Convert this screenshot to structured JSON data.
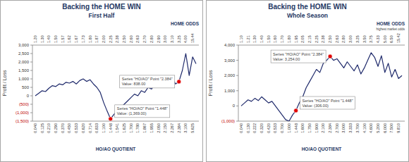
{
  "chart_data": [
    {
      "type": "line",
      "title": "Backing the HOME WIN",
      "subtitle": "First Half",
      "ylabel": "Profit / Loss",
      "xlabel": "HO/AO QUOTIENT",
      "x2label": "HOME ODDS",
      "color": "#1f2a6b",
      "grid": false,
      "categories": [
        "0.040",
        null,
        "0.125",
        null,
        "0.210",
        null,
        "0.290",
        null,
        "0.370",
        null,
        "0.450",
        null,
        "0.533",
        null,
        "0.620",
        null,
        "0.714",
        null,
        "0.833",
        null,
        "1.100",
        null,
        "1.448",
        null,
        "1.541",
        null,
        "1.625",
        null,
        "1.700",
        null,
        "1.780",
        null,
        "1.867",
        null,
        "1.955",
        null,
        "2.050",
        null,
        "2.150",
        null,
        "2.267",
        null,
        "2.384",
        null,
        "3.100",
        null,
        "5.625",
        null
      ],
      "x2_categories": [
        "1.20",
        null,
        "1.30",
        null,
        "1.40",
        null,
        "1.50",
        null,
        "1.57",
        null,
        "1.62",
        null,
        "1.67",
        null,
        "1.73",
        null,
        "1.80",
        null,
        "1.87",
        null,
        "2.00",
        null,
        "2.25",
        null,
        "2.38",
        null,
        "2.50",
        null,
        "2.60",
        null,
        "2.63",
        null,
        "2.70",
        null,
        "2.80",
        null,
        "2.90",
        null,
        "3.00",
        null,
        "3.10",
        null,
        "3.25",
        null,
        "4.00",
        null,
        "15.44",
        null
      ],
      "values": [
        0,
        150,
        300,
        250,
        450,
        600,
        550,
        700,
        650,
        800,
        750,
        850,
        700,
        900,
        1000,
        850,
        950,
        700,
        500,
        200,
        -400,
        -900,
        -1369,
        -1100,
        -900,
        -700,
        -500,
        -300,
        -100,
        100,
        0,
        300,
        200,
        500,
        400,
        700,
        600,
        800,
        1000,
        900,
        1100,
        700,
        838,
        1500,
        2500,
        1200,
        2300,
        1900
      ],
      "ylim": [
        -1500,
        3000
      ],
      "yticks": [
        {
          "value": -1500,
          "label": "(1,500)"
        },
        {
          "value": -1000,
          "label": "(1,000)"
        },
        {
          "value": -500,
          "label": "(500)"
        },
        0,
        500,
        {
          "value": 1000,
          "label": "1,000"
        },
        {
          "value": 1500,
          "label": "1,500"
        },
        {
          "value": 2000,
          "label": "2,000"
        },
        {
          "value": 2500,
          "label": "2,500"
        },
        {
          "value": 3000,
          "label": "3,000"
        }
      ],
      "annotations": [
        {
          "index": 42,
          "color": "#e00000",
          "text": [
            "Series \"HO/AO\" Point \"2.384\"",
            "Value: 838.00"
          ]
        },
        {
          "index": 22,
          "color": "#e00000",
          "text": [
            "Series \"HO/AO\" Point \"1.448\"",
            "Value: (1,369.00)"
          ]
        }
      ]
    },
    {
      "type": "line",
      "title": "Backing the HOME WIN",
      "subtitle": "Whole Season",
      "ylabel": "Profit / Loss",
      "xlabel": "HO/AO QUOTIENT",
      "x2label": "HOME ODDS",
      "x2note": "highest market odds",
      "color": "#1f2a6b",
      "grid": false,
      "categories": [
        "0.040",
        null,
        "0.130",
        null,
        "0.222",
        null,
        "0.320",
        null,
        "0.420",
        null,
        "0.533",
        null,
        "0.700",
        null,
        "1.000",
        null,
        "1.448",
        null,
        "1.600",
        null,
        "1.750",
        null,
        "1.900",
        null,
        "2.100",
        null,
        "2.384",
        null,
        "2.700",
        null,
        "3.000",
        null,
        "3.333",
        null,
        "3.700",
        null,
        "4.100",
        null,
        "4.600",
        null,
        "5.200",
        null,
        "6.000",
        null,
        "7.500",
        null,
        "9.810",
        null
      ],
      "x2_categories": [
        "1.10",
        null,
        "1.21",
        null,
        "1.30",
        null,
        "1.40",
        null,
        "1.50",
        null,
        "1.60",
        null,
        "1.70",
        null,
        "1.80",
        null,
        "1.95",
        null,
        "2.05",
        null,
        "2.15",
        null,
        "2.25",
        null,
        "2.38",
        null,
        "2.50",
        null,
        "2.63",
        null,
        "2.80",
        null,
        "3.00",
        null,
        "3.25",
        null,
        "3.50",
        null,
        "3.75",
        null,
        "4.33",
        null,
        "5.00",
        null,
        "6.50",
        null,
        "15.42",
        null
      ],
      "values": [
        0,
        200,
        400,
        300,
        500,
        350,
        600,
        400,
        200,
        300,
        0,
        -300,
        -600,
        -900,
        -1000,
        -600,
        -306,
        200,
        600,
        1200,
        1600,
        2000,
        2400,
        2200,
        2800,
        3000,
        3254,
        3000,
        3100,
        2800,
        2500,
        2900,
        2600,
        2300,
        2700,
        2100,
        2500,
        3000,
        3500,
        3200,
        2600,
        3300,
        2200,
        2800,
        1900,
        2400,
        1800,
        2000
      ],
      "ylim": [
        -1000,
        4000
      ],
      "yticks": [
        {
          "value": -1000,
          "label": "(1,000)"
        },
        0,
        {
          "value": 1000,
          "label": "1,000"
        },
        {
          "value": 2000,
          "label": "2,000"
        },
        {
          "value": 3000,
          "label": "3,000"
        },
        {
          "value": 4000,
          "label": "4,000"
        }
      ],
      "annotations": [
        {
          "index": 26,
          "color": "#e00000",
          "text": [
            "Series \"HO/AO\" Point \"2.384\"",
            "Value: 3,254.00"
          ]
        },
        {
          "index": 16,
          "color": "#e00000",
          "text": [
            "Series \"HO/AO\" Point \"1.448\"",
            "Value: (306.00)"
          ]
        }
      ]
    }
  ]
}
